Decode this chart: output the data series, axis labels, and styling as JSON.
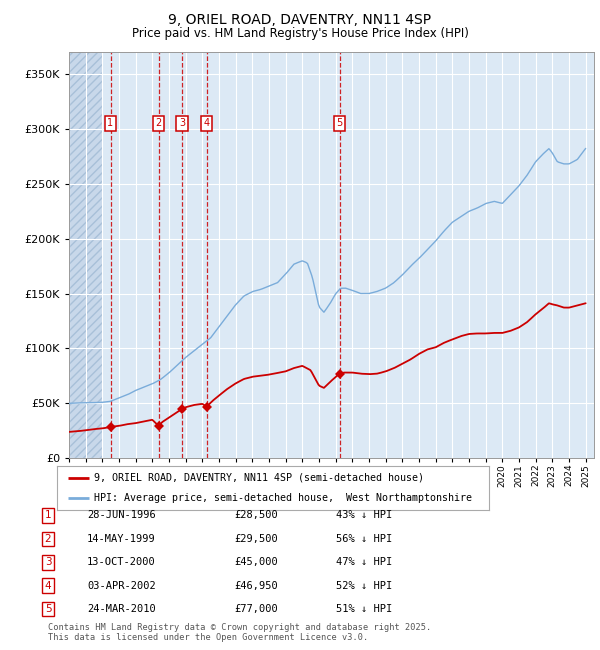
{
  "title": "9, ORIEL ROAD, DAVENTRY, NN11 4SP",
  "subtitle": "Price paid vs. HM Land Registry's House Price Index (HPI)",
  "ylim": [
    0,
    370000
  ],
  "yticks": [
    0,
    50000,
    100000,
    150000,
    200000,
    250000,
    300000,
    350000
  ],
  "xlim_start": 1994.0,
  "xlim_end": 2025.5,
  "plot_bg_color": "#dce9f5",
  "grid_color": "#ffffff",
  "hatch_region_end": 1996.0,
  "sale_color": "#cc0000",
  "hpi_color": "#7aacda",
  "sale_label": "9, ORIEL ROAD, DAVENTRY, NN11 4SP (semi-detached house)",
  "hpi_label": "HPI: Average price, semi-detached house,  West Northamptonshire",
  "footer": "Contains HM Land Registry data © Crown copyright and database right 2025.\nThis data is licensed under the Open Government Licence v3.0.",
  "transactions": [
    {
      "num": 1,
      "date": 1996.49,
      "price": 28500,
      "date_str": "28-JUN-1996",
      "price_str": "£28,500",
      "pct_str": "43% ↓ HPI"
    },
    {
      "num": 2,
      "date": 1999.37,
      "price": 29500,
      "date_str": "14-MAY-1999",
      "price_str": "£29,500",
      "pct_str": "56% ↓ HPI"
    },
    {
      "num": 3,
      "date": 2000.79,
      "price": 45000,
      "date_str": "13-OCT-2000",
      "price_str": "£45,000",
      "pct_str": "47% ↓ HPI"
    },
    {
      "num": 4,
      "date": 2002.25,
      "price": 46950,
      "date_str": "03-APR-2002",
      "price_str": "£46,950",
      "pct_str": "52% ↓ HPI"
    },
    {
      "num": 5,
      "date": 2010.23,
      "price": 77000,
      "date_str": "24-MAR-2010",
      "price_str": "£77,000",
      "pct_str": "51% ↓ HPI"
    }
  ],
  "hpi_anchors": [
    [
      1994.0,
      50000
    ],
    [
      1995.0,
      50500
    ],
    [
      1996.0,
      51000
    ],
    [
      1996.5,
      52000
    ],
    [
      1997.0,
      55000
    ],
    [
      1997.5,
      58000
    ],
    [
      1998.0,
      62000
    ],
    [
      1998.5,
      65000
    ],
    [
      1999.0,
      68000
    ],
    [
      1999.5,
      72000
    ],
    [
      2000.0,
      78000
    ],
    [
      2000.5,
      85000
    ],
    [
      2001.0,
      92000
    ],
    [
      2001.5,
      98000
    ],
    [
      2002.0,
      104000
    ],
    [
      2002.5,
      110000
    ],
    [
      2003.0,
      120000
    ],
    [
      2003.5,
      130000
    ],
    [
      2004.0,
      140000
    ],
    [
      2004.5,
      148000
    ],
    [
      2005.0,
      152000
    ],
    [
      2005.5,
      154000
    ],
    [
      2006.0,
      157000
    ],
    [
      2006.5,
      160000
    ],
    [
      2007.0,
      168000
    ],
    [
      2007.5,
      177000
    ],
    [
      2008.0,
      180000
    ],
    [
      2008.3,
      178000
    ],
    [
      2008.6,
      165000
    ],
    [
      2009.0,
      138000
    ],
    [
      2009.3,
      133000
    ],
    [
      2009.7,
      142000
    ],
    [
      2010.0,
      150000
    ],
    [
      2010.3,
      155000
    ],
    [
      2010.6,
      155000
    ],
    [
      2011.0,
      153000
    ],
    [
      2011.5,
      150000
    ],
    [
      2012.0,
      150000
    ],
    [
      2012.5,
      152000
    ],
    [
      2013.0,
      155000
    ],
    [
      2013.5,
      160000
    ],
    [
      2014.0,
      167000
    ],
    [
      2014.5,
      175000
    ],
    [
      2015.0,
      182000
    ],
    [
      2015.5,
      190000
    ],
    [
      2016.0,
      198000
    ],
    [
      2016.5,
      207000
    ],
    [
      2017.0,
      215000
    ],
    [
      2017.5,
      220000
    ],
    [
      2018.0,
      225000
    ],
    [
      2018.5,
      228000
    ],
    [
      2019.0,
      232000
    ],
    [
      2019.5,
      234000
    ],
    [
      2020.0,
      232000
    ],
    [
      2020.5,
      240000
    ],
    [
      2021.0,
      248000
    ],
    [
      2021.5,
      258000
    ],
    [
      2022.0,
      270000
    ],
    [
      2022.5,
      278000
    ],
    [
      2022.8,
      282000
    ],
    [
      2023.0,
      278000
    ],
    [
      2023.3,
      270000
    ],
    [
      2023.7,
      268000
    ],
    [
      2024.0,
      268000
    ],
    [
      2024.5,
      272000
    ],
    [
      2025.0,
      282000
    ]
  ],
  "price_anchors": [
    [
      1994.0,
      24000
    ],
    [
      1994.5,
      24500
    ],
    [
      1995.0,
      25500
    ],
    [
      1995.5,
      26500
    ],
    [
      1996.0,
      27200
    ],
    [
      1996.49,
      28500
    ],
    [
      1997.0,
      29500
    ],
    [
      1997.5,
      31000
    ],
    [
      1998.0,
      32000
    ],
    [
      1998.5,
      33500
    ],
    [
      1999.0,
      35000
    ],
    [
      1999.37,
      29500
    ],
    [
      1999.6,
      33000
    ],
    [
      1999.9,
      36000
    ],
    [
      2000.3,
      40000
    ],
    [
      2000.79,
      45000
    ],
    [
      2001.0,
      46500
    ],
    [
      2001.5,
      48500
    ],
    [
      2002.0,
      49500
    ],
    [
      2002.25,
      46950
    ],
    [
      2002.6,
      52000
    ],
    [
      2003.0,
      57000
    ],
    [
      2003.5,
      63000
    ],
    [
      2004.0,
      68000
    ],
    [
      2004.5,
      72000
    ],
    [
      2005.0,
      74000
    ],
    [
      2005.5,
      75000
    ],
    [
      2006.0,
      76000
    ],
    [
      2006.5,
      77500
    ],
    [
      2007.0,
      79000
    ],
    [
      2007.5,
      82000
    ],
    [
      2008.0,
      84000
    ],
    [
      2008.5,
      80000
    ],
    [
      2009.0,
      66000
    ],
    [
      2009.3,
      64000
    ],
    [
      2009.7,
      70000
    ],
    [
      2010.0,
      74000
    ],
    [
      2010.23,
      77000
    ],
    [
      2010.5,
      78000
    ],
    [
      2011.0,
      78000
    ],
    [
      2011.5,
      77000
    ],
    [
      2012.0,
      76500
    ],
    [
      2012.5,
      77000
    ],
    [
      2013.0,
      79000
    ],
    [
      2013.5,
      82000
    ],
    [
      2014.0,
      86000
    ],
    [
      2014.5,
      90000
    ],
    [
      2015.0,
      95000
    ],
    [
      2015.5,
      99000
    ],
    [
      2016.0,
      101000
    ],
    [
      2016.5,
      105000
    ],
    [
      2017.0,
      108000
    ],
    [
      2017.5,
      111000
    ],
    [
      2018.0,
      113000
    ],
    [
      2018.5,
      113500
    ],
    [
      2019.0,
      113500
    ],
    [
      2019.5,
      114000
    ],
    [
      2020.0,
      114000
    ],
    [
      2020.5,
      116000
    ],
    [
      2021.0,
      119000
    ],
    [
      2021.5,
      124000
    ],
    [
      2022.0,
      131000
    ],
    [
      2022.5,
      137000
    ],
    [
      2022.8,
      141000
    ],
    [
      2023.0,
      140000
    ],
    [
      2023.3,
      139000
    ],
    [
      2023.7,
      137000
    ],
    [
      2024.0,
      137000
    ],
    [
      2024.5,
      139000
    ],
    [
      2025.0,
      141000
    ]
  ]
}
